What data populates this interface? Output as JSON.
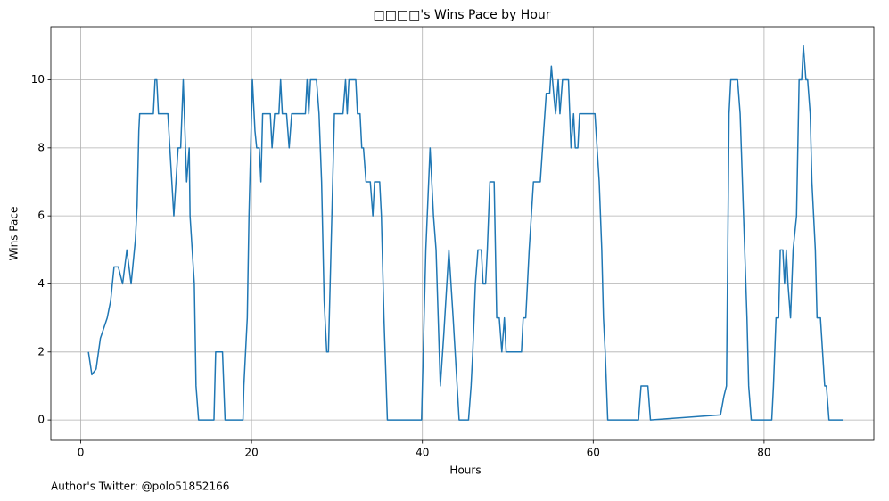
{
  "chart_data": {
    "type": "line",
    "title": "□□□□'s Wins Pace by Hour",
    "xlabel": "Hours",
    "ylabel": "Wins Pace",
    "footnote": "Author's Twitter: @polo51852166",
    "x": [
      0.9,
      1.3,
      1.8,
      2.3,
      3.1,
      3.5,
      3.9,
      4.4,
      4.9,
      5.4,
      5.9,
      6.4,
      6.6,
      6.8,
      6.9,
      8.5,
      8.7,
      8.9,
      9.1,
      10.2,
      10.9,
      11.4,
      11.7,
      12,
      12.2,
      12.4,
      12.7,
      12.8,
      13.3,
      13.5,
      13.8,
      15.6,
      15.8,
      16.6,
      16.9,
      19,
      19.1,
      19.5,
      19.7,
      20.1,
      20.4,
      20.6,
      20.9,
      21.1,
      21.3,
      22.2,
      22.4,
      22.7,
      23.2,
      23.4,
      23.6,
      24.1,
      24.4,
      24.7,
      26.3,
      26.5,
      26.7,
      26.9,
      27.6,
      27.9,
      28.2,
      28.5,
      28.8,
      29,
      29.3,
      29.5,
      29.7,
      30.7,
      31,
      31.2,
      31.4,
      32.2,
      32.4,
      32.7,
      32.9,
      33.1,
      33.4,
      33.9,
      34.2,
      34.4,
      35,
      35.2,
      35.5,
      35.9,
      39.9,
      40.1,
      40.4,
      40.9,
      41.3,
      41.6,
      42.1,
      42.5,
      43.1,
      43.6,
      44.3,
      45.4,
      45.7,
      45.9,
      46.2,
      46.5,
      46.9,
      47.1,
      47.4,
      47.6,
      47.9,
      48.4,
      48.7,
      49,
      49.3,
      49.6,
      49.8,
      51.6,
      51.8,
      52.1,
      52.5,
      53,
      53.8,
      54.2,
      54.5,
      54.9,
      55.1,
      55.4,
      55.6,
      55.9,
      56.1,
      56.4,
      57.1,
      57.4,
      57.7,
      57.9,
      58.2,
      58.4,
      60.2,
      60.7,
      61,
      61.2,
      61.4,
      61.7,
      65.3,
      65.6,
      66.4,
      66.7,
      74.9,
      75.3,
      75.6,
      75.9,
      76.1,
      76.9,
      77.2,
      77.6,
      78,
      78.2,
      78.5,
      80.9,
      81.1,
      81.4,
      81.7,
      81.9,
      82.2,
      82.4,
      82.6,
      82.8,
      83.1,
      83.4,
      83.8,
      84.1,
      84.4,
      84.6,
      84.9,
      85.1,
      85.4,
      85.6,
      86,
      86.2,
      86.6,
      87.1,
      87.3,
      87.6,
      89.2
    ],
    "series": [
      {
        "name": "Wins Pace",
        "color": "#1f77b4",
        "values": [
          2,
          1.33,
          1.5,
          2.4,
          3,
          3.5,
          4.5,
          4.5,
          4,
          5,
          4,
          5.3,
          6.3,
          8.5,
          9,
          9,
          10,
          10,
          9,
          9,
          6,
          8,
          8,
          10,
          8.5,
          7,
          8,
          6,
          4,
          1,
          0,
          0,
          2,
          2,
          0,
          0,
          1,
          3,
          6,
          10,
          8.5,
          8,
          8,
          7,
          9,
          9,
          8,
          9,
          9,
          10,
          9,
          9,
          8,
          9,
          9,
          10,
          9,
          10,
          10,
          9,
          7,
          3.5,
          2,
          2,
          5,
          7,
          9,
          9,
          10,
          9,
          10,
          10,
          9,
          9,
          8,
          8,
          7,
          7,
          6,
          7,
          7,
          6,
          3,
          0,
          0,
          2,
          5,
          8,
          6,
          5,
          1,
          2.5,
          5,
          3,
          0,
          0,
          1,
          2,
          4,
          5,
          5,
          4,
          4,
          5,
          7,
          7,
          3,
          3,
          2,
          3,
          2,
          2,
          3,
          3,
          5,
          7,
          7,
          8.5,
          9.6,
          9.6,
          10.4,
          9.5,
          9,
          10,
          9,
          10,
          10,
          8,
          9,
          8,
          8,
          9,
          9,
          7,
          5,
          3,
          2,
          0,
          0,
          1,
          1,
          0,
          0.15,
          0.7,
          1,
          9,
          10,
          10,
          9,
          6,
          3,
          1,
          0,
          0,
          1,
          3,
          3,
          5,
          5,
          4,
          5,
          4,
          3,
          5,
          6,
          10,
          10,
          11,
          10,
          10,
          9,
          7,
          5,
          3,
          3,
          1,
          1,
          0,
          0
        ]
      }
    ],
    "xlim": [
      -3.5,
      92.85
    ],
    "ylim": [
      -0.6,
      11.56
    ],
    "xticks": [
      0,
      20,
      40,
      60,
      80
    ],
    "yticks": [
      0,
      2,
      4,
      6,
      8,
      10
    ],
    "grid": true
  }
}
